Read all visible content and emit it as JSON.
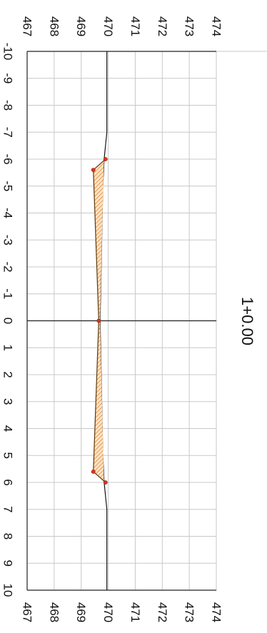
{
  "chart_data": {
    "type": "area",
    "orientation": "rotated 90 degrees clockwise",
    "title": "1+0.00",
    "xlabel": "",
    "ylabel": "",
    "xlim": [
      -10,
      10
    ],
    "ylim": [
      467,
      474
    ],
    "xticks": [
      "-10",
      "-9",
      "-8",
      "-7",
      "-6",
      "-5",
      "-4",
      "-3",
      "-2",
      "-1",
      "0",
      "1",
      "2",
      "3",
      "4",
      "5",
      "6",
      "7",
      "8",
      "9",
      "10"
    ],
    "yticks": [
      "467",
      "468",
      "469",
      "470",
      "471",
      "472",
      "473",
      "474"
    ],
    "grid": true,
    "series": [
      {
        "role": "ground-line",
        "x": [
          -10,
          -7,
          -6,
          -5,
          0,
          5,
          6,
          7,
          10
        ],
        "y": [
          469.95,
          469.95,
          469.85,
          469.8,
          469.7,
          469.8,
          469.85,
          469.95,
          469.95
        ]
      },
      {
        "role": "template-section",
        "x": [
          -6,
          -5.6,
          0,
          5.6,
          6
        ],
        "y": [
          469.9,
          469.45,
          469.65,
          469.45,
          469.9
        ]
      }
    ],
    "vertices": [
      {
        "x": -6,
        "y": 469.9
      },
      {
        "x": -5.6,
        "y": 469.45
      },
      {
        "x": 0,
        "y": 469.65
      },
      {
        "x": 5.6,
        "y": 469.45
      },
      {
        "x": 6,
        "y": 469.9
      }
    ],
    "colors": {
      "grid": "#c8c8c8",
      "axis": "#222222",
      "ground": "#111111",
      "fill_hatch": "#e07a1a",
      "outline": "#5a3a10",
      "vertex": "#d9361c"
    }
  }
}
